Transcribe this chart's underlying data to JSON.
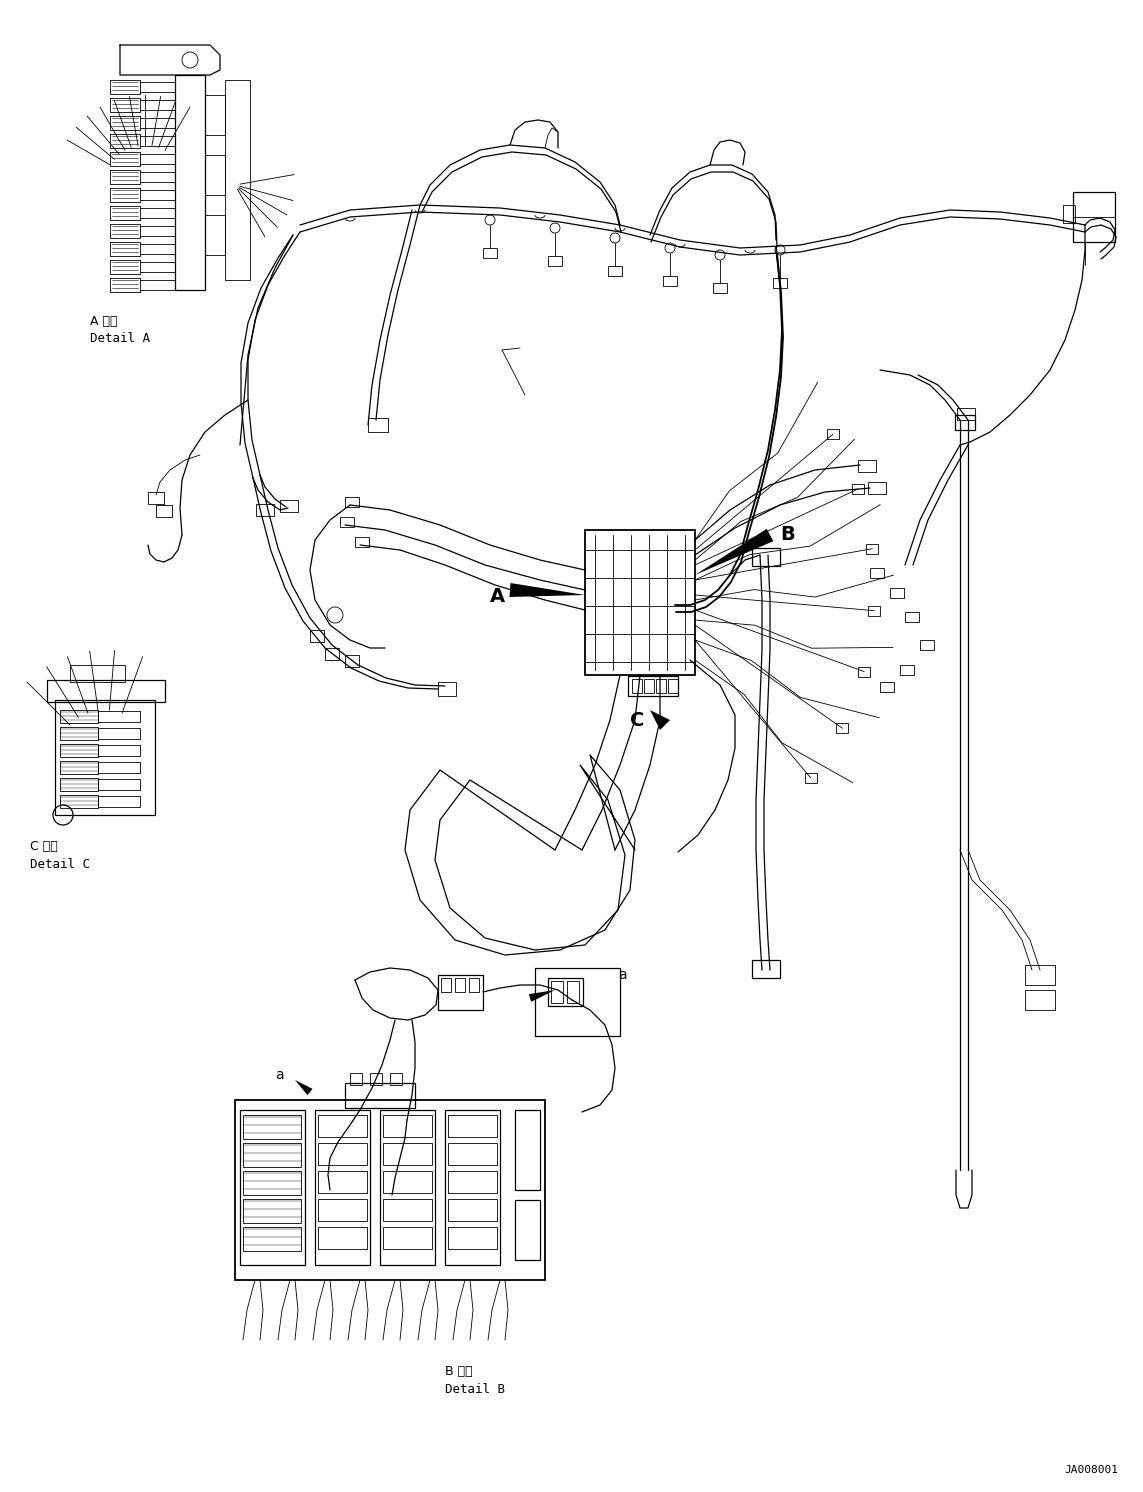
{
  "bg_color": "#ffffff",
  "line_color": "#000000",
  "diagram_id": "JA008001",
  "labels": {
    "detail_a_jp": "A 詳細",
    "detail_a_en": "Detail A",
    "detail_b_jp": "B 詳細",
    "detail_b_en": "Detail B",
    "detail_c_jp": "C 詳細",
    "detail_c_en": "Detail C",
    "label_a": "A",
    "label_b": "B",
    "label_c": "C",
    "label_a_small": "a"
  },
  "figsize": [
    11.43,
    14.92
  ],
  "dpi": 100
}
